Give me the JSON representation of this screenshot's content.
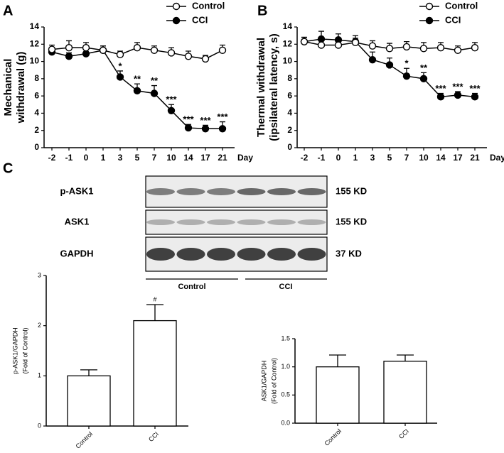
{
  "chart_data": [
    {
      "type": "line",
      "panel": "A",
      "ylabel": [
        "Mechanical",
        "withdrawal (g)"
      ],
      "xlabel": "Day",
      "categories": [
        "-2",
        "-1",
        "0",
        "1",
        "3",
        "5",
        "7",
        "10",
        "14",
        "17",
        "21"
      ],
      "ylim": [
        0,
        14
      ],
      "yticks": [
        0,
        2,
        4,
        6,
        8,
        10,
        12,
        14
      ],
      "series": [
        {
          "name": "Control",
          "marker": "open",
          "color": "#000000",
          "values": [
            11.4,
            11.6,
            11.6,
            11.3,
            10.8,
            11.6,
            11.3,
            11.0,
            10.6,
            10.3,
            11.3
          ],
          "errors": [
            0.5,
            0.8,
            0.6,
            0.5,
            0.4,
            0.6,
            0.5,
            0.6,
            0.6,
            0.4,
            0.6
          ]
        },
        {
          "name": "CCI",
          "marker": "filled",
          "color": "#000000",
          "values": [
            11.1,
            10.6,
            10.9,
            11.3,
            8.2,
            6.6,
            6.3,
            4.3,
            2.3,
            2.2,
            2.2
          ],
          "errors": [
            0.4,
            0.4,
            0.5,
            0.5,
            0.7,
            0.8,
            0.9,
            0.7,
            0.4,
            0.4,
            0.8
          ],
          "labels": [
            null,
            null,
            null,
            null,
            "*",
            "**",
            "**",
            "***",
            "***",
            "***",
            "***"
          ]
        }
      ]
    },
    {
      "type": "line",
      "panel": "B",
      "ylabel": [
        "Thermal withdrawal",
        "(ipsilateral latency, s)"
      ],
      "xlabel": "Day",
      "categories": [
        "-2",
        "-1",
        "0",
        "1",
        "3",
        "5",
        "7",
        "10",
        "14",
        "17",
        "21"
      ],
      "ylim": [
        0,
        14
      ],
      "yticks": [
        0,
        2,
        4,
        6,
        8,
        10,
        12,
        14
      ],
      "series": [
        {
          "name": "Control",
          "marker": "open",
          "color": "#000000",
          "values": [
            12.3,
            11.9,
            11.9,
            12.2,
            11.8,
            11.5,
            11.7,
            11.5,
            11.6,
            11.3,
            11.6
          ],
          "errors": [
            0.5,
            0.6,
            0.6,
            0.5,
            0.6,
            0.6,
            0.6,
            0.7,
            0.6,
            0.5,
            0.6
          ]
        },
        {
          "name": "CCI",
          "marker": "filled",
          "color": "#000000",
          "values": [
            12.3,
            12.6,
            12.5,
            12.3,
            10.2,
            9.6,
            8.3,
            8.0,
            5.9,
            6.1,
            5.9
          ],
          "errors": [
            0.5,
            0.9,
            0.7,
            0.7,
            0.9,
            0.8,
            0.9,
            0.7,
            0.4,
            0.4,
            0.4
          ],
          "labels": [
            null,
            null,
            null,
            null,
            null,
            null,
            "*",
            "**",
            "***",
            "***",
            "***"
          ]
        }
      ]
    },
    {
      "type": "bar",
      "ylabel": [
        "p-ASK1/GAPDH",
        "(Fold of Control)"
      ],
      "categories": [
        "Control",
        "CCI"
      ],
      "values": [
        1.0,
        2.1
      ],
      "errors": [
        0.12,
        0.32
      ],
      "labels": [
        null,
        "#"
      ],
      "color": "#ffffff",
      "ylim": [
        0,
        3
      ],
      "yticks": [
        0,
        1,
        2,
        3
      ]
    },
    {
      "type": "bar",
      "ylabel": [
        "ASK1/GAPDH",
        "(Fold of Control)"
      ],
      "categories": [
        "Control",
        "CCI"
      ],
      "values": [
        1.0,
        1.1
      ],
      "errors": [
        0.21,
        0.11
      ],
      "color": "#ffffff",
      "ylim": [
        0,
        1.5
      ],
      "yticks": [
        {
          "value": 0,
          "label": "0.0"
        },
        0.5,
        {
          "value": 1,
          "label": "1.0"
        },
        1.5
      ]
    }
  ],
  "blot": {
    "panel": "C",
    "rows": [
      {
        "name": "p-ASK1",
        "size": "155 KD"
      },
      {
        "name": "ASK1",
        "size": "155 KD"
      },
      {
        "name": "GAPDH",
        "size": "37  KD"
      }
    ],
    "groups": [
      "Control",
      "CCI"
    ]
  }
}
